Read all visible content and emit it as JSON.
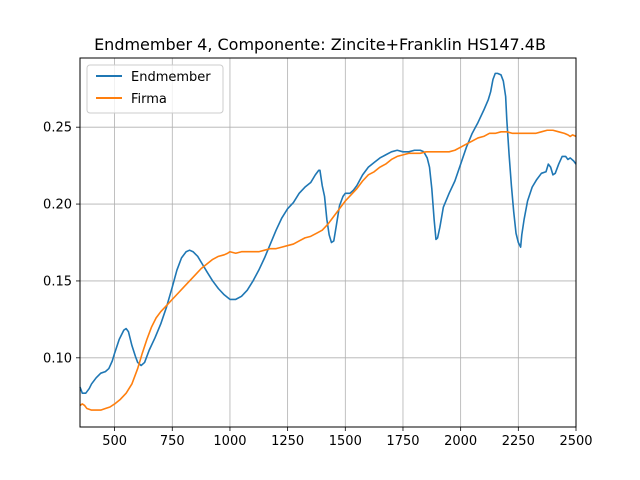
{
  "chart_data": {
    "type": "line",
    "title": "Endmember 4, Componente: Zincite+Franklin HS147.4B",
    "xlabel": "",
    "ylabel": "",
    "xlim": [
      350,
      2500
    ],
    "ylim": [
      0.055,
      0.295
    ],
    "grid": true,
    "legend_position": "top-left",
    "x_ticks": [
      500,
      750,
      1000,
      1250,
      1500,
      1750,
      2000,
      2250,
      2500
    ],
    "y_ticks": [
      0.1,
      0.15,
      0.2,
      0.25
    ],
    "x_tick_labels": [
      "500",
      "750",
      "1000",
      "1250",
      "1500",
      "1750",
      "2000",
      "2250",
      "2500"
    ],
    "y_tick_labels": [
      "0.10",
      "0.15",
      "0.20",
      "0.25"
    ],
    "series": [
      {
        "name": "Endmember",
        "color": "#1f77b4",
        "points": [
          [
            350,
            0.081
          ],
          [
            360,
            0.077
          ],
          [
            375,
            0.077
          ],
          [
            390,
            0.08
          ],
          [
            400,
            0.083
          ],
          [
            420,
            0.087
          ],
          [
            440,
            0.09
          ],
          [
            460,
            0.091
          ],
          [
            475,
            0.093
          ],
          [
            490,
            0.098
          ],
          [
            500,
            0.103
          ],
          [
            520,
            0.112
          ],
          [
            540,
            0.118
          ],
          [
            550,
            0.119
          ],
          [
            560,
            0.117
          ],
          [
            575,
            0.108
          ],
          [
            590,
            0.101
          ],
          [
            600,
            0.097
          ],
          [
            615,
            0.095
          ],
          [
            630,
            0.097
          ],
          [
            650,
            0.105
          ],
          [
            675,
            0.113
          ],
          [
            700,
            0.122
          ],
          [
            725,
            0.133
          ],
          [
            750,
            0.146
          ],
          [
            770,
            0.157
          ],
          [
            790,
            0.165
          ],
          [
            810,
            0.169
          ],
          [
            825,
            0.17
          ],
          [
            840,
            0.169
          ],
          [
            860,
            0.166
          ],
          [
            880,
            0.161
          ],
          [
            900,
            0.156
          ],
          [
            925,
            0.15
          ],
          [
            950,
            0.145
          ],
          [
            975,
            0.141
          ],
          [
            1000,
            0.138
          ],
          [
            1025,
            0.138
          ],
          [
            1050,
            0.14
          ],
          [
            1075,
            0.144
          ],
          [
            1100,
            0.15
          ],
          [
            1125,
            0.157
          ],
          [
            1150,
            0.165
          ],
          [
            1175,
            0.174
          ],
          [
            1200,
            0.183
          ],
          [
            1225,
            0.191
          ],
          [
            1250,
            0.197
          ],
          [
            1275,
            0.201
          ],
          [
            1300,
            0.207
          ],
          [
            1325,
            0.211
          ],
          [
            1350,
            0.214
          ],
          [
            1370,
            0.219
          ],
          [
            1385,
            0.222
          ],
          [
            1390,
            0.222
          ],
          [
            1400,
            0.212
          ],
          [
            1410,
            0.205
          ],
          [
            1420,
            0.19
          ],
          [
            1430,
            0.18
          ],
          [
            1440,
            0.175
          ],
          [
            1450,
            0.176
          ],
          [
            1460,
            0.185
          ],
          [
            1475,
            0.199
          ],
          [
            1490,
            0.205
          ],
          [
            1500,
            0.207
          ],
          [
            1520,
            0.207
          ],
          [
            1535,
            0.209
          ],
          [
            1550,
            0.212
          ],
          [
            1575,
            0.219
          ],
          [
            1600,
            0.224
          ],
          [
            1625,
            0.227
          ],
          [
            1650,
            0.23
          ],
          [
            1675,
            0.232
          ],
          [
            1700,
            0.234
          ],
          [
            1725,
            0.235
          ],
          [
            1750,
            0.234
          ],
          [
            1775,
            0.234
          ],
          [
            1800,
            0.235
          ],
          [
            1825,
            0.235
          ],
          [
            1840,
            0.234
          ],
          [
            1855,
            0.23
          ],
          [
            1865,
            0.224
          ],
          [
            1875,
            0.21
          ],
          [
            1885,
            0.19
          ],
          [
            1893,
            0.177
          ],
          [
            1900,
            0.178
          ],
          [
            1910,
            0.185
          ],
          [
            1925,
            0.198
          ],
          [
            1950,
            0.207
          ],
          [
            1975,
            0.215
          ],
          [
            2000,
            0.226
          ],
          [
            2025,
            0.237
          ],
          [
            2050,
            0.246
          ],
          [
            2075,
            0.253
          ],
          [
            2100,
            0.261
          ],
          [
            2120,
            0.268
          ],
          [
            2130,
            0.273
          ],
          [
            2140,
            0.281
          ],
          [
            2150,
            0.285
          ],
          [
            2160,
            0.285
          ],
          [
            2175,
            0.284
          ],
          [
            2185,
            0.28
          ],
          [
            2195,
            0.27
          ],
          [
            2200,
            0.255
          ],
          [
            2210,
            0.232
          ],
          [
            2220,
            0.212
          ],
          [
            2230,
            0.195
          ],
          [
            2240,
            0.181
          ],
          [
            2250,
            0.175
          ],
          [
            2260,
            0.172
          ],
          [
            2265,
            0.18
          ],
          [
            2275,
            0.19
          ],
          [
            2290,
            0.202
          ],
          [
            2310,
            0.211
          ],
          [
            2330,
            0.216
          ],
          [
            2350,
            0.22
          ],
          [
            2370,
            0.221
          ],
          [
            2380,
            0.226
          ],
          [
            2390,
            0.224
          ],
          [
            2400,
            0.219
          ],
          [
            2410,
            0.22
          ],
          [
            2425,
            0.226
          ],
          [
            2440,
            0.231
          ],
          [
            2455,
            0.231
          ],
          [
            2465,
            0.229
          ],
          [
            2475,
            0.23
          ],
          [
            2490,
            0.228
          ],
          [
            2500,
            0.226
          ]
        ]
      },
      {
        "name": "Firma",
        "color": "#ff7f0e",
        "points": [
          [
            350,
            0.069
          ],
          [
            360,
            0.07
          ],
          [
            370,
            0.069
          ],
          [
            380,
            0.067
          ],
          [
            400,
            0.066
          ],
          [
            420,
            0.066
          ],
          [
            440,
            0.066
          ],
          [
            460,
            0.067
          ],
          [
            480,
            0.068
          ],
          [
            500,
            0.07
          ],
          [
            525,
            0.073
          ],
          [
            550,
            0.077
          ],
          [
            575,
            0.083
          ],
          [
            600,
            0.093
          ],
          [
            620,
            0.103
          ],
          [
            640,
            0.112
          ],
          [
            660,
            0.12
          ],
          [
            680,
            0.126
          ],
          [
            700,
            0.13
          ],
          [
            725,
            0.134
          ],
          [
            750,
            0.138
          ],
          [
            775,
            0.142
          ],
          [
            800,
            0.146
          ],
          [
            825,
            0.15
          ],
          [
            850,
            0.154
          ],
          [
            875,
            0.158
          ],
          [
            900,
            0.161
          ],
          [
            925,
            0.164
          ],
          [
            950,
            0.166
          ],
          [
            975,
            0.167
          ],
          [
            990,
            0.168
          ],
          [
            1000,
            0.169
          ],
          [
            1025,
            0.168
          ],
          [
            1050,
            0.169
          ],
          [
            1075,
            0.169
          ],
          [
            1100,
            0.169
          ],
          [
            1125,
            0.169
          ],
          [
            1150,
            0.17
          ],
          [
            1175,
            0.171
          ],
          [
            1200,
            0.171
          ],
          [
            1225,
            0.172
          ],
          [
            1250,
            0.173
          ],
          [
            1275,
            0.174
          ],
          [
            1300,
            0.176
          ],
          [
            1325,
            0.178
          ],
          [
            1350,
            0.179
          ],
          [
            1375,
            0.181
          ],
          [
            1400,
            0.183
          ],
          [
            1425,
            0.187
          ],
          [
            1450,
            0.192
          ],
          [
            1475,
            0.197
          ],
          [
            1500,
            0.202
          ],
          [
            1525,
            0.206
          ],
          [
            1550,
            0.21
          ],
          [
            1575,
            0.215
          ],
          [
            1600,
            0.219
          ],
          [
            1625,
            0.221
          ],
          [
            1650,
            0.224
          ],
          [
            1675,
            0.226
          ],
          [
            1700,
            0.229
          ],
          [
            1725,
            0.231
          ],
          [
            1750,
            0.232
          ],
          [
            1775,
            0.233
          ],
          [
            1800,
            0.233
          ],
          [
            1825,
            0.233
          ],
          [
            1850,
            0.234
          ],
          [
            1875,
            0.234
          ],
          [
            1900,
            0.234
          ],
          [
            1925,
            0.234
          ],
          [
            1950,
            0.234
          ],
          [
            1975,
            0.235
          ],
          [
            2000,
            0.237
          ],
          [
            2025,
            0.239
          ],
          [
            2050,
            0.241
          ],
          [
            2075,
            0.243
          ],
          [
            2100,
            0.244
          ],
          [
            2125,
            0.246
          ],
          [
            2150,
            0.246
          ],
          [
            2175,
            0.247
          ],
          [
            2200,
            0.247
          ],
          [
            2225,
            0.246
          ],
          [
            2250,
            0.246
          ],
          [
            2275,
            0.246
          ],
          [
            2300,
            0.246
          ],
          [
            2325,
            0.246
          ],
          [
            2350,
            0.247
          ],
          [
            2375,
            0.248
          ],
          [
            2400,
            0.248
          ],
          [
            2425,
            0.247
          ],
          [
            2450,
            0.246
          ],
          [
            2465,
            0.245
          ],
          [
            2475,
            0.244
          ],
          [
            2485,
            0.245
          ],
          [
            2500,
            0.244
          ]
        ]
      }
    ]
  }
}
